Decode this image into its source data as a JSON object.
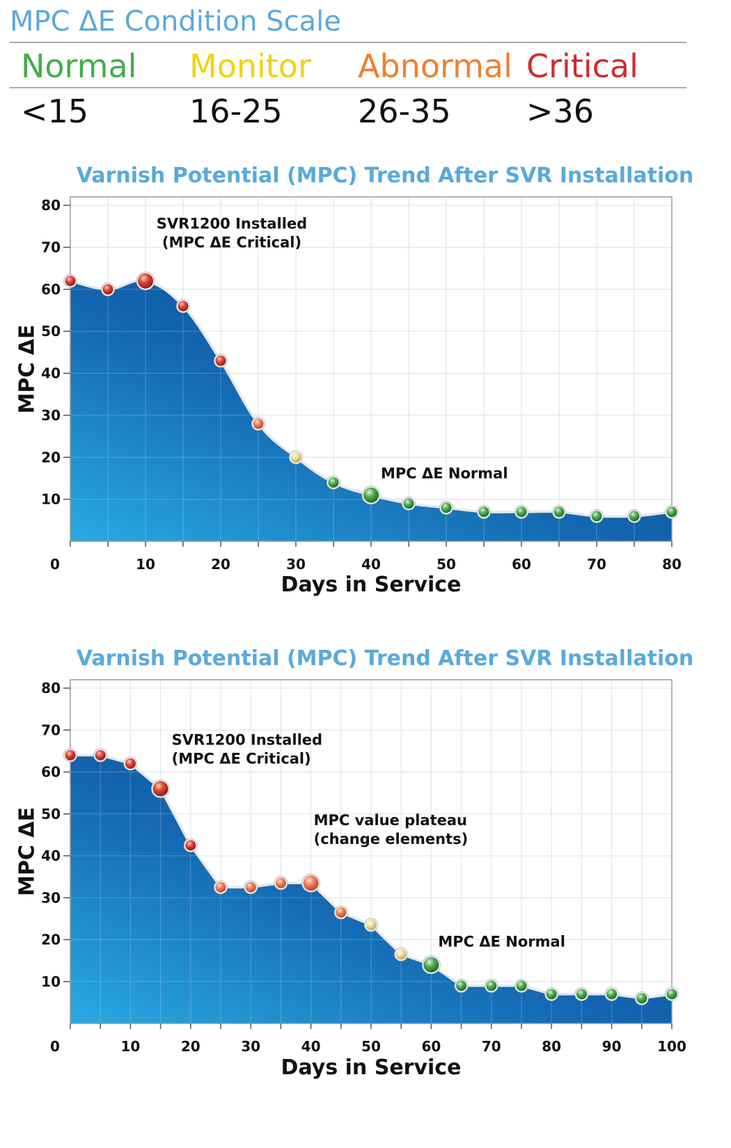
{
  "scale": {
    "title": "MPC ΔE Condition Scale",
    "levels": [
      {
        "label": "Normal",
        "range": "<15",
        "color": "#3fae49"
      },
      {
        "label": "Monitor",
        "range": "16-25",
        "color": "#f2d20f"
      },
      {
        "label": "Abnormal",
        "range": "26-35",
        "color": "#f07f2f"
      },
      {
        "label": "Critical",
        "range": ">36",
        "color": "#d02a2e"
      }
    ]
  },
  "chart_data": [
    {
      "type": "area",
      "title": "Varnish Potential (MPC) Trend After SVR Installation",
      "xlabel": "Days in Service",
      "ylabel": "MPC ΔE",
      "xlim": [
        0,
        80
      ],
      "ylim": [
        0,
        82
      ],
      "x_ticks": [
        0,
        10,
        20,
        30,
        40,
        50,
        60,
        70,
        80
      ],
      "y_ticks": [
        10,
        20,
        30,
        40,
        50,
        60,
        70,
        80
      ],
      "grid": true,
      "series": [
        {
          "x": [
            0,
            5,
            10,
            15,
            20,
            25,
            30,
            35,
            40,
            45,
            50,
            55,
            60,
            65,
            70,
            75,
            80
          ],
          "values": [
            62,
            60,
            62,
            56,
            43,
            28,
            20,
            14,
            11,
            9,
            8,
            7,
            7,
            7,
            6,
            6,
            7
          ]
        }
      ],
      "annotations": [
        {
          "x": 10,
          "y": 62,
          "lines": [
            "SVR1200 Installed",
            "(MPC ΔE Critical)"
          ]
        },
        {
          "x": 40,
          "y": 11,
          "lines": [
            "MPC ΔE Normal"
          ]
        }
      ]
    },
    {
      "type": "area",
      "title": "Varnish Potential (MPC) Trend After SVR Installation",
      "xlabel": "Days in Service",
      "ylabel": "MPC ΔE",
      "xlim": [
        0,
        100
      ],
      "ylim": [
        0,
        82
      ],
      "x_ticks": [
        0,
        10,
        20,
        30,
        40,
        50,
        60,
        70,
        80,
        90,
        100
      ],
      "y_ticks": [
        10,
        20,
        30,
        40,
        50,
        60,
        70,
        80
      ],
      "grid": true,
      "series": [
        {
          "x": [
            0,
            5,
            10,
            15,
            20,
            25,
            30,
            35,
            40,
            45,
            50,
            55,
            60,
            65,
            70,
            75,
            80,
            85,
            90,
            95,
            100
          ],
          "values": [
            64,
            64,
            62,
            56,
            42.5,
            32.5,
            32.5,
            33.5,
            33.5,
            26.5,
            23.5,
            16.5,
            14,
            9,
            9,
            9,
            7,
            7,
            7,
            6,
            7
          ]
        }
      ],
      "annotations": [
        {
          "x": 15,
          "y": 56,
          "lines": [
            "SVR1200 Installed",
            "(MPC ΔE Critical)"
          ]
        },
        {
          "x": 40,
          "y": 33.5,
          "lines": [
            "MPC value plateau",
            "(change elements)"
          ]
        },
        {
          "x": 60,
          "y": 14,
          "lines": [
            "MPC ΔE Normal"
          ]
        }
      ]
    }
  ]
}
